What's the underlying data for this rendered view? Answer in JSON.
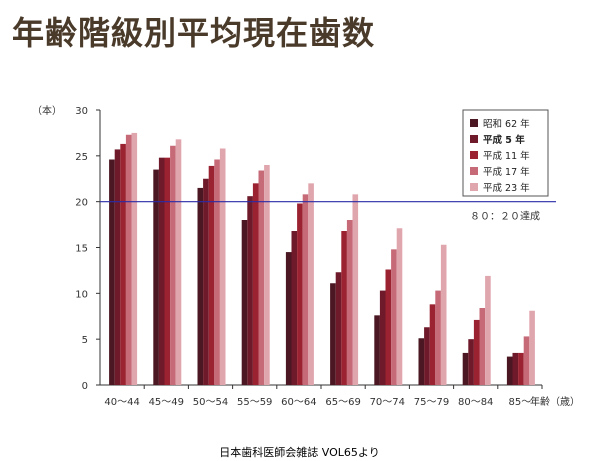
{
  "title": "年齢階級別平均現在歯数",
  "source": "日本歯科医師会雑誌 VOL65より",
  "chart_data": {
    "type": "bar",
    "ylabel": "（本）",
    "xlabel": "年齢（歳）",
    "ylim": [
      0,
      30
    ],
    "yticks": [
      0,
      5,
      10,
      15,
      20,
      25,
      30
    ],
    "categories": [
      "40〜44",
      "45〜49",
      "50〜54",
      "55〜59",
      "60〜64",
      "65〜69",
      "70〜74",
      "75〜79",
      "80〜84",
      "85〜"
    ],
    "series": [
      {
        "name": "昭和 62 年",
        "color": "#4a1722",
        "values": [
          24.6,
          23.5,
          21.5,
          18.0,
          14.5,
          11.1,
          7.6,
          5.1,
          3.5,
          3.1
        ]
      },
      {
        "name": "平成 5 年",
        "color": "#6e1a2a",
        "values": [
          25.7,
          24.8,
          22.5,
          20.6,
          16.8,
          12.3,
          10.3,
          6.3,
          5.0,
          3.5
        ]
      },
      {
        "name": "平成 11 年",
        "color": "#9b2230",
        "values": [
          26.3,
          24.8,
          23.9,
          22.0,
          19.8,
          16.8,
          12.6,
          8.8,
          7.1,
          3.5
        ]
      },
      {
        "name": "平成 17 年",
        "color": "#c66a78",
        "values": [
          27.3,
          26.1,
          24.6,
          23.4,
          20.8,
          18.0,
          14.8,
          10.3,
          8.4,
          5.3
        ]
      },
      {
        "name": "平成 23 年",
        "color": "#e0a6ae",
        "values": [
          27.5,
          26.8,
          25.8,
          24.0,
          22.0,
          20.8,
          17.1,
          15.3,
          11.9,
          8.1
        ]
      }
    ],
    "annotation": {
      "text": "８０：２０達成",
      "y": 20,
      "color": "#2a2aa8"
    },
    "legend_position": "top-right",
    "grid": false
  }
}
